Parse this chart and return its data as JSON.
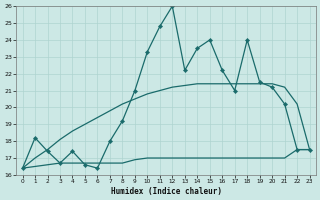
{
  "xlabel": "Humidex (Indice chaleur)",
  "xlim": [
    -0.5,
    23.5
  ],
  "ylim": [
    16,
    26
  ],
  "xticks": [
    0,
    1,
    2,
    3,
    4,
    5,
    6,
    7,
    8,
    9,
    10,
    11,
    12,
    13,
    14,
    15,
    16,
    17,
    18,
    19,
    20,
    21,
    22,
    23
  ],
  "yticks": [
    16,
    17,
    18,
    19,
    20,
    21,
    22,
    23,
    24,
    25,
    26
  ],
  "bg_color": "#cce8e5",
  "line_color": "#1a6b6b",
  "grid_color": "#afd4d0",
  "series1_x": [
    0,
    1,
    2,
    3,
    4,
    5,
    6,
    7,
    8,
    9,
    10,
    11,
    12,
    13,
    14,
    15,
    16,
    17,
    18,
    19,
    20,
    21,
    22,
    23
  ],
  "series1_y": [
    16.4,
    18.2,
    17.4,
    16.7,
    17.4,
    16.6,
    16.4,
    18.0,
    19.2,
    21.0,
    23.3,
    24.8,
    26.0,
    22.2,
    23.5,
    24.0,
    22.2,
    21.0,
    24.0,
    21.5,
    21.2,
    20.2,
    17.5,
    17.5
  ],
  "series2_x": [
    0,
    1,
    2,
    3,
    4,
    5,
    6,
    7,
    8,
    9,
    10,
    11,
    12,
    13,
    14,
    15,
    16,
    17,
    18,
    19,
    20,
    21,
    22,
    23
  ],
  "series2_y": [
    16.4,
    17.0,
    17.5,
    18.1,
    18.6,
    19.0,
    19.4,
    19.8,
    20.2,
    20.5,
    20.8,
    21.0,
    21.2,
    21.3,
    21.4,
    21.4,
    21.4,
    21.4,
    21.4,
    21.4,
    21.4,
    21.2,
    20.2,
    17.5
  ],
  "series3_x": [
    0,
    1,
    2,
    3,
    4,
    5,
    6,
    7,
    8,
    9,
    10,
    11,
    12,
    13,
    14,
    15,
    16,
    17,
    18,
    19,
    20,
    21,
    22,
    23
  ],
  "series3_y": [
    16.4,
    16.5,
    16.6,
    16.7,
    16.7,
    16.7,
    16.7,
    16.7,
    16.7,
    16.9,
    17.0,
    17.0,
    17.0,
    17.0,
    17.0,
    17.0,
    17.0,
    17.0,
    17.0,
    17.0,
    17.0,
    17.0,
    17.5,
    17.5
  ]
}
